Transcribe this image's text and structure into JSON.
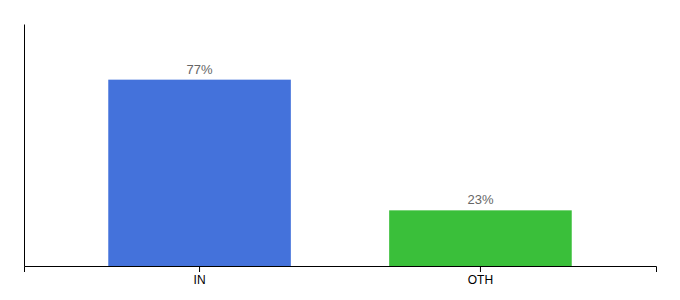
{
  "chart_data": {
    "type": "bar",
    "categories": [
      "IN",
      "OTH"
    ],
    "values": [
      77,
      23
    ],
    "value_labels": [
      "77%",
      "23%"
    ],
    "data_labels": true,
    "colors": [
      "#4472db",
      "#3abf3a"
    ],
    "ylim": [
      0,
      100
    ],
    "tick_labels": "x"
  }
}
